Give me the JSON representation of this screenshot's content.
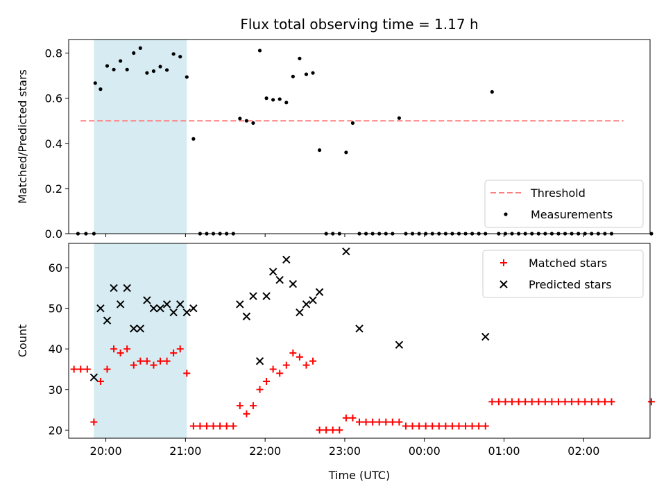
{
  "chart_data": [
    {
      "type": "scatter",
      "title": "Flux total observing time = 1.17 h",
      "ylabel": "Matched/Predicted stars",
      "xlabel": "",
      "ylim": [
        0,
        0.86
      ],
      "yticks": [
        0.0,
        0.2,
        0.4,
        0.6,
        0.8
      ],
      "ytick_labels": [
        "0.0",
        "0.2",
        "0.4",
        "0.6",
        "0.8"
      ],
      "xlim": [
        "19:32",
        "02:50"
      ],
      "xticks": [
        "20:00",
        "21:00",
        "22:00",
        "23:00",
        "00:00",
        "01:00",
        "02:00"
      ],
      "shaded_region": {
        "from": "19:51",
        "to": "21:01",
        "color": "#add8e6"
      },
      "legend_position": "lower right",
      "series": [
        {
          "name": "Threshold",
          "style": "dashed-line",
          "color": "#ff7f7f",
          "x": [
            "19:41",
            "02:30"
          ],
          "y": [
            0.5,
            0.5
          ]
        },
        {
          "name": "Measurements",
          "style": "dot",
          "color": "#000000",
          "x": [
            "19:39",
            "19:45",
            "19:51",
            "19:52",
            "19:56",
            "20:01",
            "20:06",
            "20:11",
            "20:16",
            "20:21",
            "20:26",
            "20:31",
            "20:36",
            "20:41",
            "20:46",
            "20:51",
            "20:56",
            "21:01",
            "21:06",
            "21:11",
            "21:16",
            "21:21",
            "21:26",
            "21:31",
            "21:36",
            "21:41",
            "21:46",
            "21:51",
            "21:56",
            "22:01",
            "22:06",
            "22:11",
            "22:16",
            "22:21",
            "22:26",
            "22:31",
            "22:36",
            "22:41",
            "22:46",
            "22:51",
            "22:56",
            "23:01",
            "23:06",
            "23:11",
            "23:16",
            "23:21",
            "23:26",
            "23:31",
            "23:36",
            "23:41",
            "23:46",
            "23:51",
            "23:56",
            "00:01",
            "00:06",
            "00:11",
            "00:16",
            "00:21",
            "00:26",
            "00:31",
            "00:36",
            "00:41",
            "00:46",
            "00:51",
            "00:56",
            "01:01",
            "01:06",
            "01:11",
            "01:16",
            "01:21",
            "01:26",
            "01:31",
            "01:36",
            "01:41",
            "01:46",
            "01:51",
            "01:56",
            "02:01",
            "02:06",
            "02:11",
            "02:16",
            "02:21",
            "02:51"
          ],
          "y": [
            0.0,
            0.0,
            0.0,
            0.667,
            0.64,
            0.743,
            0.727,
            0.765,
            0.727,
            0.8,
            0.822,
            0.712,
            0.72,
            0.74,
            0.725,
            0.796,
            0.784,
            0.694,
            0.42,
            0.0,
            0.0,
            0.0,
            0.0,
            0.0,
            0.0,
            0.51,
            0.5,
            0.49,
            0.811,
            0.6,
            0.593,
            0.596,
            0.581,
            0.696,
            0.776,
            0.706,
            0.712,
            0.37,
            0.0,
            0.0,
            0.0,
            0.36,
            0.49,
            0.0,
            0.0,
            0.0,
            0.0,
            0.0,
            0.0,
            0.512,
            0.0,
            0.0,
            0.0,
            0.0,
            0.0,
            0.0,
            0.0,
            0.0,
            0.0,
            0.0,
            0.0,
            0.0,
            0.0,
            0.628,
            0.0,
            0.0,
            0.0,
            0.0,
            0.0,
            0.0,
            0.0,
            0.0,
            0.0,
            0.0,
            0.0,
            0.0,
            0.0,
            0.0,
            0.0,
            0.0,
            0.0,
            0.0,
            0.0
          ]
        }
      ]
    },
    {
      "type": "scatter",
      "title": "",
      "ylabel": "Count",
      "xlabel": "Time (UTC)",
      "ylim": [
        18,
        66
      ],
      "yticks": [
        20,
        30,
        40,
        50,
        60
      ],
      "ytick_labels": [
        "20",
        "30",
        "40",
        "50",
        "60"
      ],
      "xlim": [
        "19:32",
        "02:50"
      ],
      "xticks": [
        "20:00",
        "21:00",
        "22:00",
        "23:00",
        "00:00",
        "01:00",
        "02:00"
      ],
      "xtick_labels": [
        "20:00",
        "21:00",
        "22:00",
        "23:00",
        "00:00",
        "01:00",
        "02:00"
      ],
      "shaded_region": {
        "from": "19:51",
        "to": "21:01",
        "color": "#add8e6"
      },
      "legend_position": "upper right",
      "series": [
        {
          "name": "Matched stars",
          "marker": "plus",
          "color": "#ff0000",
          "x": [
            "19:36",
            "19:41",
            "19:46",
            "19:51",
            "19:56",
            "20:01",
            "20:06",
            "20:11",
            "20:16",
            "20:21",
            "20:26",
            "20:31",
            "20:36",
            "20:41",
            "20:46",
            "20:51",
            "20:56",
            "21:01",
            "21:06",
            "21:11",
            "21:16",
            "21:21",
            "21:26",
            "21:31",
            "21:36",
            "21:41",
            "21:46",
            "21:51",
            "21:56",
            "22:01",
            "22:06",
            "22:11",
            "22:16",
            "22:21",
            "22:26",
            "22:31",
            "22:36",
            "22:41",
            "22:46",
            "22:51",
            "22:56",
            "23:01",
            "23:06",
            "23:11",
            "23:16",
            "23:21",
            "23:26",
            "23:31",
            "23:36",
            "23:41",
            "23:46",
            "23:51",
            "23:56",
            "00:01",
            "00:06",
            "00:11",
            "00:16",
            "00:21",
            "00:26",
            "00:31",
            "00:36",
            "00:41",
            "00:46",
            "00:51",
            "00:56",
            "01:01",
            "01:06",
            "01:11",
            "01:16",
            "01:21",
            "01:26",
            "01:31",
            "01:36",
            "01:41",
            "01:46",
            "01:51",
            "01:56",
            "02:01",
            "02:06",
            "02:11",
            "02:16",
            "02:21",
            "02:51"
          ],
          "y": [
            35,
            35,
            35,
            22,
            32,
            35,
            40,
            39,
            40,
            36,
            37,
            37,
            36,
            37,
            37,
            39,
            40,
            34,
            21,
            21,
            21,
            21,
            21,
            21,
            21,
            26,
            24,
            26,
            30,
            32,
            35,
            34,
            36,
            39,
            38,
            36,
            37,
            20,
            20,
            20,
            20,
            23,
            23,
            22,
            22,
            22,
            22,
            22,
            22,
            22,
            21,
            21,
            21,
            21,
            21,
            21,
            21,
            21,
            21,
            21,
            21,
            21,
            21,
            27,
            27,
            27,
            27,
            27,
            27,
            27,
            27,
            27,
            27,
            27,
            27,
            27,
            27,
            27,
            27,
            27,
            27,
            27,
            27
          ]
        },
        {
          "name": "Predicted stars",
          "marker": "cross",
          "color": "#000000",
          "x": [
            "19:51",
            "19:56",
            "20:01",
            "20:06",
            "20:11",
            "20:16",
            "20:21",
            "20:26",
            "20:31",
            "20:36",
            "20:41",
            "20:46",
            "20:51",
            "20:56",
            "21:01",
            "21:06",
            "21:41",
            "21:46",
            "21:51",
            "21:56",
            "22:01",
            "22:06",
            "22:11",
            "22:16",
            "22:21",
            "22:26",
            "22:31",
            "22:36",
            "22:41",
            "23:01",
            "23:11",
            "23:41",
            "00:46"
          ],
          "y": [
            33,
            50,
            47,
            55,
            51,
            55,
            45,
            45,
            52,
            50,
            50,
            51,
            49,
            51,
            49,
            50,
            51,
            48,
            53,
            37,
            53,
            59,
            57,
            62,
            56,
            49,
            51,
            52,
            54,
            64,
            45,
            41,
            43
          ]
        }
      ]
    }
  ]
}
